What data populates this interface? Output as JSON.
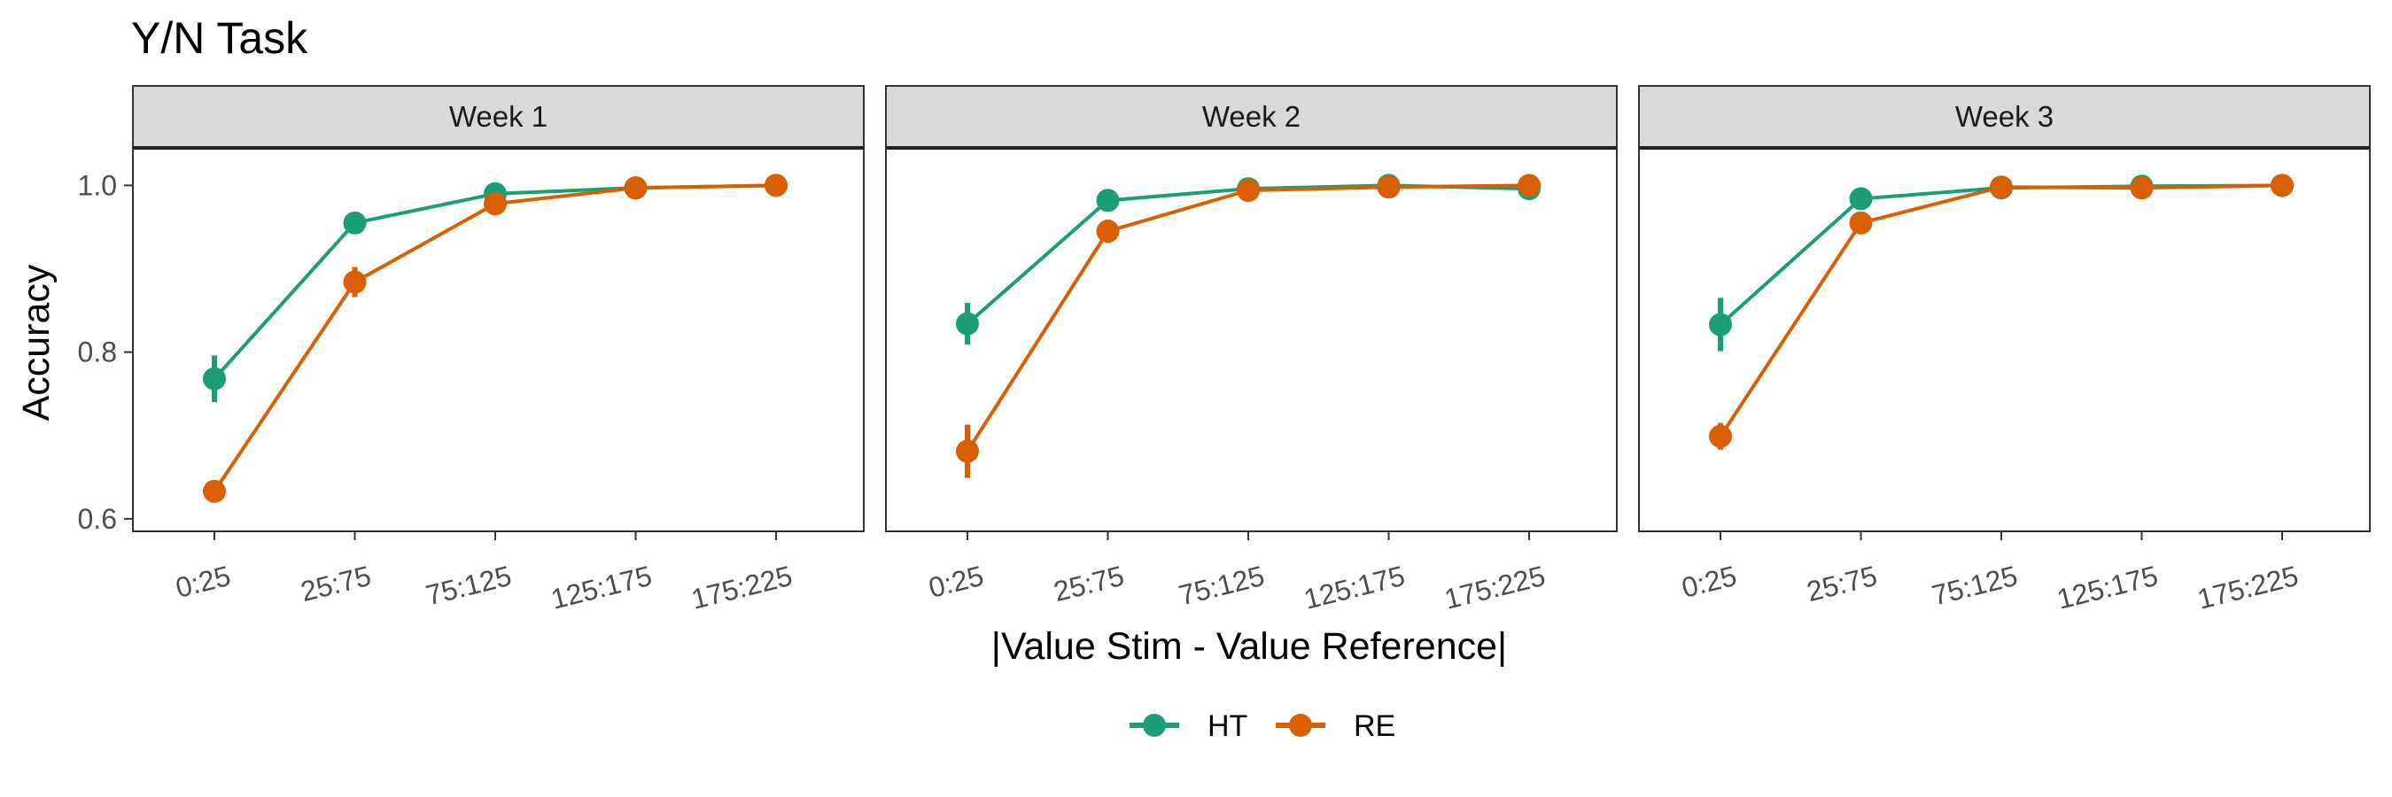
{
  "chart_data": {
    "type": "line",
    "title": "Y/N Task",
    "xlabel": "|Value Stim - Value Reference|",
    "ylabel": "Accuracy",
    "ylim": [
      0.585,
      1.045
    ],
    "yticks": [
      0.6,
      0.8,
      1.0
    ],
    "ytick_labels": [
      "0.6",
      "0.8",
      "1.0"
    ],
    "categories": [
      "0:25",
      "25:75",
      "75:125",
      "125:175",
      "175:225"
    ],
    "grid": false,
    "legend_position": "bottom",
    "colors": {
      "HT": "#1b9e77",
      "RE": "#d95f02"
    },
    "panels": [
      {
        "label": "Week 1",
        "series": [
          {
            "name": "HT",
            "values": [
              0.768,
              0.955,
              0.99,
              0.997,
              1.0
            ],
            "errors": [
              0.028,
              0.007,
              0.004,
              0.002,
              0.001
            ]
          },
          {
            "name": "RE",
            "values": [
              0.633,
              0.884,
              0.978,
              0.997,
              1.0
            ],
            "errors": [
              0.012,
              0.018,
              0.006,
              0.003,
              0.001
            ]
          }
        ]
      },
      {
        "label": "Week 2",
        "series": [
          {
            "name": "HT",
            "values": [
              0.834,
              0.982,
              0.996,
              1.0,
              0.996
            ],
            "errors": [
              0.025,
              0.006,
              0.003,
              0.002,
              0.002
            ]
          },
          {
            "name": "RE",
            "values": [
              0.681,
              0.945,
              0.994,
              0.998,
              1.0
            ],
            "errors": [
              0.032,
              0.014,
              0.004,
              0.002,
              0.001
            ]
          }
        ]
      },
      {
        "label": "Week 3",
        "series": [
          {
            "name": "HT",
            "values": [
              0.833,
              0.984,
              0.997,
              0.999,
              1.0
            ],
            "errors": [
              0.032,
              0.006,
              0.003,
              0.002,
              0.001
            ]
          },
          {
            "name": "RE",
            "values": [
              0.699,
              0.955,
              0.998,
              0.997,
              1.0
            ],
            "errors": [
              0.016,
              0.01,
              0.003,
              0.002,
              0.001
            ]
          }
        ]
      }
    ]
  }
}
